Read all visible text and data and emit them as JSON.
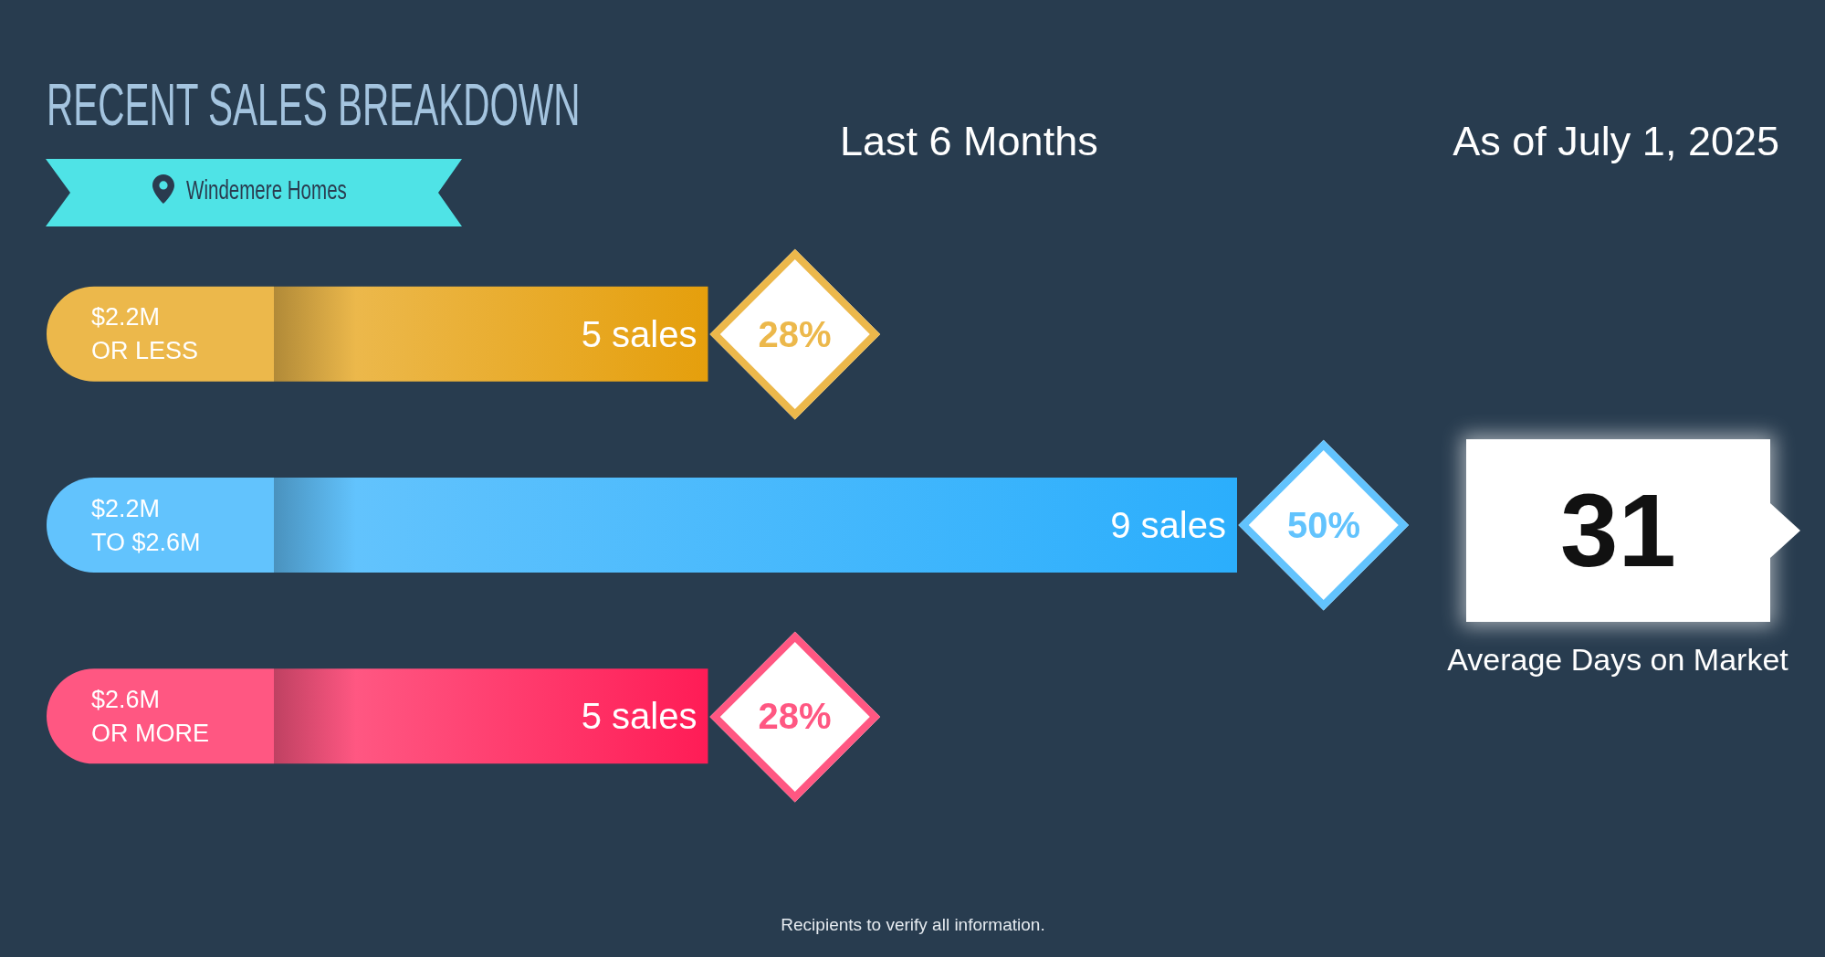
{
  "chart_data": [
    {
      "type": "bar",
      "orientation": "horizontal",
      "title": "RECENT SALES BREAKDOWN",
      "subtitle": "Windemere Homes",
      "categories": [
        "$2.2M\nOR LESS",
        "$2.2M\nTO $2.6M",
        "$2.6M\nOR MORE"
      ],
      "values": [
        5,
        9,
        5
      ],
      "value_labels": [
        "5 sales",
        "9 sales",
        "5 sales"
      ],
      "colors": [
        "#ecb84b",
        "#62c3fd",
        "#ff5782"
      ],
      "tick_labels": "y",
      "annotations": [
        "Last 6 Months",
        "As of July 1, 2025",
        "Recipients to verify all information.",
        "28%",
        "50%",
        "28%"
      ]
    },
    {
      "type": "other",
      "categories": [
        "Average Days on Market"
      ],
      "values": [
        31
      ],
      "data_labels": true
    }
  ]
}
